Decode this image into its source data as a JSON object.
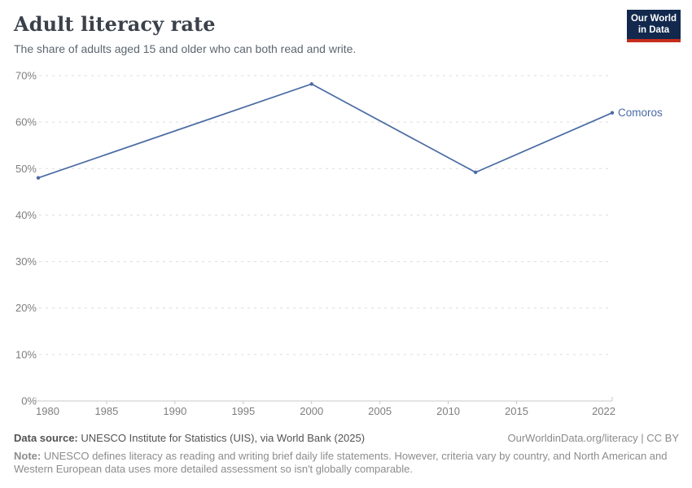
{
  "header": {
    "title": "Adult literacy rate",
    "subtitle": "The share of adults aged 15 and older who can both read and write.",
    "logo": {
      "line1": "Our World",
      "line2": "in Data"
    }
  },
  "colors": {
    "line": "#4a6ba3",
    "logo_bg": "#12294d",
    "logo_accent": "#c62d1d",
    "grid": "#dcdcdc",
    "axis": "#c8c8c8",
    "tick_label": "#7e7e7e"
  },
  "chart_data": {
    "type": "line",
    "title": "Adult literacy rate",
    "subtitle": "The share of adults aged 15 and older who can both read and write.",
    "xlabel": "",
    "ylabel": "",
    "xlim": [
      1980,
      2022
    ],
    "ylim": [
      0,
      70
    ],
    "x_ticks": [
      1980,
      1985,
      1990,
      1995,
      2000,
      2005,
      2010,
      2015,
      2022
    ],
    "y_ticks": [
      0,
      10,
      20,
      30,
      40,
      50,
      60,
      70
    ],
    "y_tick_suffix": "%",
    "grid": "horizontal-dashed",
    "legend_position": "end-of-line-label",
    "series": [
      {
        "name": "Comoros",
        "x": [
          1980,
          2000,
          2012,
          2022
        ],
        "values": [
          48,
          68.2,
          49.2,
          62
        ]
      }
    ]
  },
  "footer": {
    "source_label": "Data source:",
    "source_text": "UNESCO Institute for Statistics (UIS), via World Bank (2025)",
    "rights": "OurWorldinData.org/literacy | CC BY",
    "note_label": "Note:",
    "note_text": "UNESCO defines literacy as reading and writing brief daily life statements. However, criteria vary by country, and North American and Western European data uses more detailed assessment so isn't globally comparable."
  }
}
